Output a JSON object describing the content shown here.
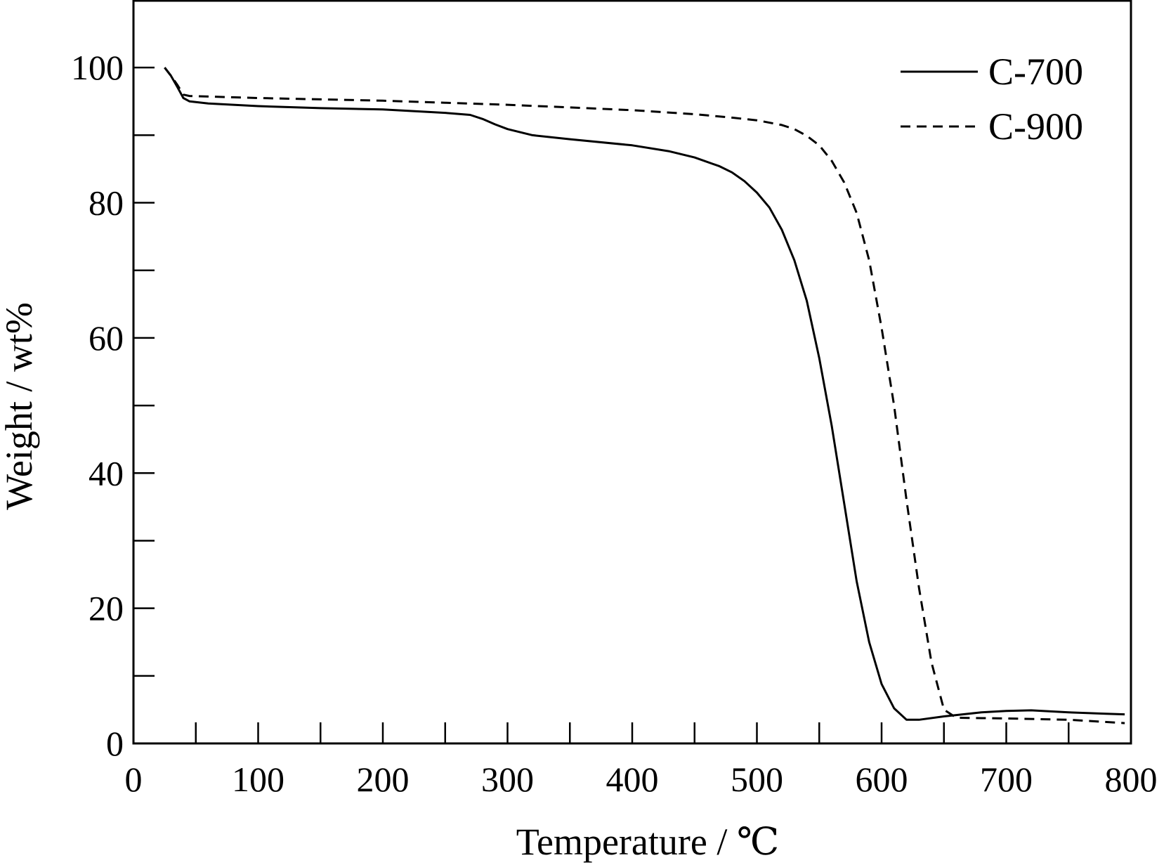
{
  "chart_data": {
    "type": "line",
    "title": "",
    "xlabel": "Temperature / ℃",
    "ylabel": "Weight / wt%",
    "xlim": [
      0,
      800
    ],
    "ylim": [
      0,
      110
    ],
    "xticks": [
      "0",
      "100",
      "200",
      "300",
      "400",
      "500",
      "600",
      "700",
      "800"
    ],
    "yticks": [
      "0",
      "20",
      "40",
      "60",
      "80",
      "100"
    ],
    "grid": false,
    "legend_position": "top-right",
    "series": [
      {
        "name": "C-700",
        "line_style": "solid",
        "color": "#000000",
        "points": [
          [
            25,
            100
          ],
          [
            30,
            98.8
          ],
          [
            35,
            97.2
          ],
          [
            40,
            95.5
          ],
          [
            45,
            95.0
          ],
          [
            60,
            94.7
          ],
          [
            100,
            94.3
          ],
          [
            150,
            94.0
          ],
          [
            200,
            93.8
          ],
          [
            250,
            93.3
          ],
          [
            270,
            93.0
          ],
          [
            280,
            92.4
          ],
          [
            290,
            91.6
          ],
          [
            300,
            90.9
          ],
          [
            320,
            90.0
          ],
          [
            350,
            89.4
          ],
          [
            400,
            88.5
          ],
          [
            430,
            87.6
          ],
          [
            450,
            86.7
          ],
          [
            470,
            85.4
          ],
          [
            480,
            84.5
          ],
          [
            490,
            83.2
          ],
          [
            500,
            81.5
          ],
          [
            510,
            79.3
          ],
          [
            520,
            76.0
          ],
          [
            530,
            71.5
          ],
          [
            540,
            65.5
          ],
          [
            550,
            57.0
          ],
          [
            560,
            47.0
          ],
          [
            570,
            35.5
          ],
          [
            580,
            24.0
          ],
          [
            590,
            15.0
          ],
          [
            600,
            8.8
          ],
          [
            610,
            5.2
          ],
          [
            620,
            3.5
          ],
          [
            630,
            3.5
          ],
          [
            650,
            4.0
          ],
          [
            680,
            4.6
          ],
          [
            700,
            4.8
          ],
          [
            720,
            4.9
          ],
          [
            750,
            4.6
          ],
          [
            780,
            4.4
          ],
          [
            795,
            4.3
          ]
        ]
      },
      {
        "name": "C-900",
        "line_style": "dashed",
        "color": "#000000",
        "points": [
          [
            25,
            100
          ],
          [
            30,
            98.8
          ],
          [
            35,
            97.5
          ],
          [
            40,
            96.0
          ],
          [
            45,
            95.8
          ],
          [
            100,
            95.5
          ],
          [
            150,
            95.3
          ],
          [
            200,
            95.1
          ],
          [
            250,
            94.8
          ],
          [
            300,
            94.5
          ],
          [
            350,
            94.1
          ],
          [
            400,
            93.7
          ],
          [
            450,
            93.1
          ],
          [
            480,
            92.6
          ],
          [
            500,
            92.2
          ],
          [
            520,
            91.5
          ],
          [
            530,
            90.9
          ],
          [
            540,
            89.9
          ],
          [
            550,
            88.5
          ],
          [
            560,
            86.2
          ],
          [
            570,
            83.0
          ],
          [
            580,
            78.5
          ],
          [
            590,
            71.5
          ],
          [
            600,
            61.5
          ],
          [
            610,
            50.0
          ],
          [
            620,
            36.0
          ],
          [
            630,
            23.0
          ],
          [
            640,
            12.0
          ],
          [
            650,
            5.0
          ],
          [
            660,
            3.8
          ],
          [
            700,
            3.7
          ],
          [
            750,
            3.5
          ],
          [
            795,
            3.0
          ]
        ]
      }
    ]
  }
}
